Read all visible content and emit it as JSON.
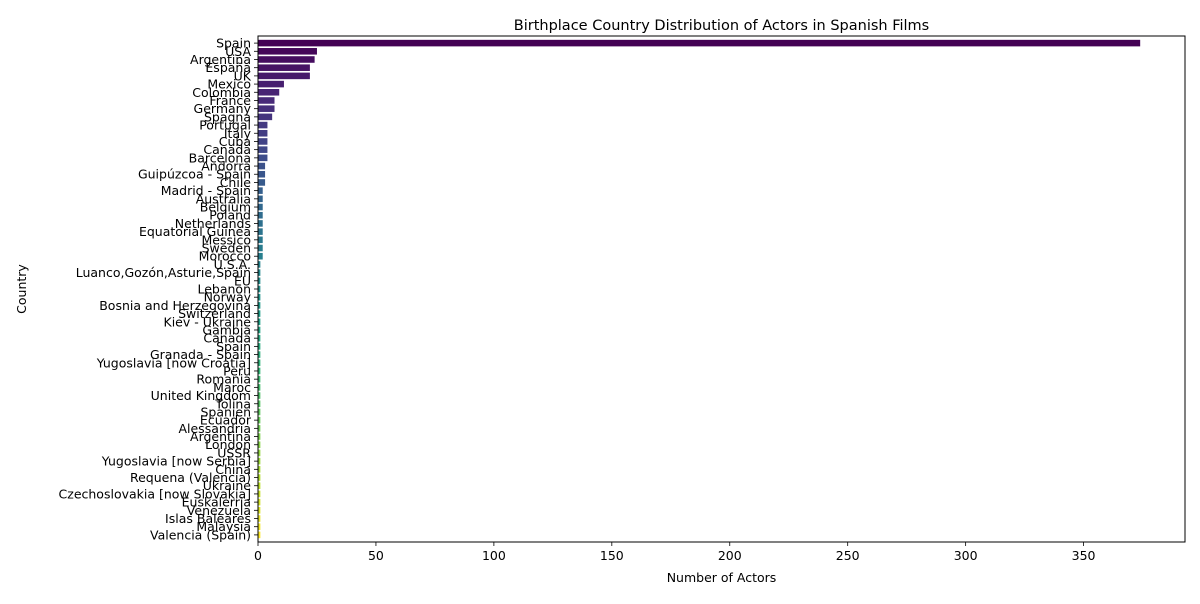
{
  "chart_data": {
    "type": "bar",
    "orientation": "horizontal",
    "title": "Birthplace Country Distribution of Actors in Spanish Films",
    "xlabel": "Number of Actors",
    "ylabel": "Country",
    "xlim": [
      0,
      393
    ],
    "xticks": [
      0,
      50,
      100,
      150,
      200,
      250,
      300,
      350
    ],
    "grid": false,
    "colormap": "viridis",
    "categories": [
      "Spain",
      "USA",
      "Argentina",
      "España",
      "UK",
      "Mexico",
      "Colombia",
      "France",
      "Germany",
      "Spagna",
      "Portugal",
      "Italy",
      "Cuba",
      "Canada",
      "Barcelona",
      "Andorra",
      "Guipúzcoa - Spain",
      "Chile",
      "Madrid - Spain",
      "Australia",
      "Belgium",
      "Poland",
      "Netherlands",
      "Equatorial Guinea",
      "Messico",
      "Sweden",
      "Morocco",
      "U.S.A.",
      "Luanco,Gozón,Asturie,Spain",
      "EU",
      "Lebanon",
      "Norway",
      "Bosnia and Herzegovina",
      "Switzerland",
      "Kiev - Ukraine",
      "Gambia",
      "Canada ",
      "Spain ",
      "Granada - Spain",
      "Yugoslavia [now Croatia]",
      "Peru",
      "Romania",
      "Maroc",
      "United Kingdom",
      "Tolina",
      "Spanien",
      "Ecuador",
      "Alessandria",
      "Argentina ",
      "London",
      "USSR",
      "Yugoslavia [now Serbia]",
      "China",
      "Requena (Valencia)",
      "Ukraine",
      "Czechoslovakia [now Slovakia]",
      "Euskalerria",
      "Venezuela",
      "Islas Baleares",
      "Malaysia",
      "Valencia (Spain)"
    ],
    "values": [
      374,
      25,
      24,
      22,
      22,
      11,
      9,
      7,
      7,
      6,
      4,
      4,
      4,
      4,
      4,
      3,
      3,
      3,
      2,
      2,
      2,
      2,
      2,
      2,
      2,
      2,
      2,
      1,
      1,
      1,
      1,
      1,
      1,
      1,
      1,
      1,
      1,
      1,
      1,
      1,
      1,
      1,
      1,
      1,
      1,
      1,
      1,
      1,
      1,
      1,
      1,
      1,
      1,
      1,
      1,
      1,
      1,
      1,
      1,
      1,
      1
    ]
  }
}
